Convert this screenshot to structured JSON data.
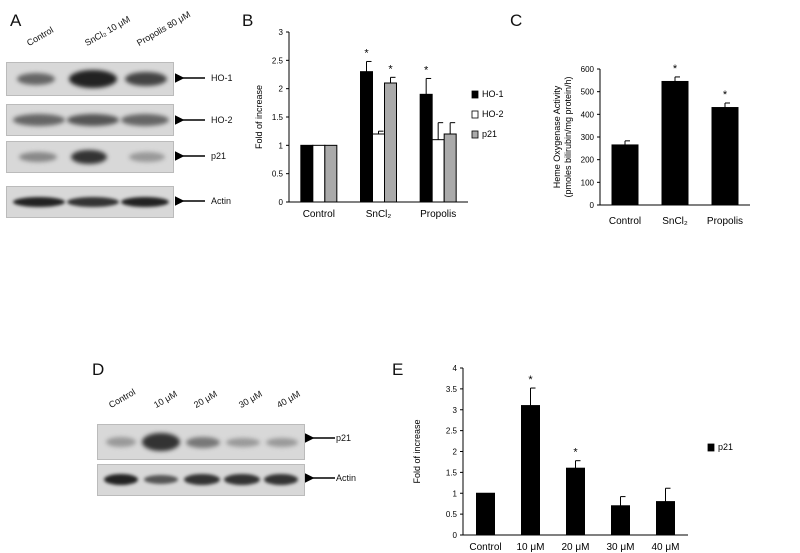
{
  "panels": {
    "a": "A",
    "b": "B",
    "c": "C",
    "d": "D",
    "e": "E"
  },
  "blotA": {
    "lanes": [
      "Control",
      "SnCl₂ 10 μM",
      "Propolis 80 μM"
    ],
    "rows": [
      "HO-1",
      "HO-2",
      "p21",
      "Actin"
    ]
  },
  "blotD": {
    "lanes": [
      "Control",
      "10 μM",
      "20 μM",
      "30 μM",
      "40 μM"
    ],
    "rows": [
      "p21",
      "Actin"
    ]
  },
  "chart_data": [
    {
      "id": "B",
      "type": "bar",
      "categories": [
        "Control",
        "SnCl₂",
        "Propolis"
      ],
      "series": [
        {
          "name": "HO-1",
          "values": [
            1.0,
            2.3,
            1.9
          ],
          "errors": [
            0,
            0.18,
            0.28
          ],
          "sig": [
            false,
            true,
            true
          ],
          "color": "#000000"
        },
        {
          "name": "HO-2",
          "values": [
            1.0,
            1.2,
            1.1
          ],
          "errors": [
            0,
            0.05,
            0.3
          ],
          "sig": [
            false,
            false,
            false
          ],
          "color": "#ffffff"
        },
        {
          "name": "p21",
          "values": [
            1.0,
            2.1,
            1.2
          ],
          "errors": [
            0,
            0.1,
            0.2
          ],
          "sig": [
            false,
            true,
            false
          ],
          "color": "#aaaaaa"
        }
      ],
      "ylabel": "Fold of increase",
      "ylim": [
        0,
        3
      ],
      "yticks": [
        "0",
        "0.5",
        "1",
        "1.5",
        "2",
        "2.5",
        "3"
      ],
      "sig_mark": "*",
      "legend_position": "right"
    },
    {
      "id": "C",
      "type": "bar",
      "categories": [
        "Control",
        "SnCl₂",
        "Propolis"
      ],
      "values": [
        265,
        545,
        430
      ],
      "errors": [
        18,
        20,
        20
      ],
      "sig": [
        false,
        true,
        true
      ],
      "ylabel": "Heme Oxygenase Activity",
      "ylabel2": "(pmoles bilirubin/mg protein/h)",
      "ylim": [
        0,
        600
      ],
      "yticks": [
        "0",
        "100",
        "200",
        "300",
        "400",
        "500",
        "600"
      ],
      "sig_mark": "*"
    },
    {
      "id": "E",
      "type": "bar",
      "categories": [
        "Control",
        "10 μM",
        "20 μM",
        "30 μM",
        "40 μM"
      ],
      "series": [
        {
          "name": "p21",
          "values": [
            1.0,
            3.1,
            1.6,
            0.7,
            0.8
          ],
          "errors": [
            0,
            0.42,
            0.18,
            0.22,
            0.32
          ],
          "sig": [
            false,
            true,
            true,
            false,
            false
          ],
          "color": "#000000"
        }
      ],
      "ylabel": "Fold of increase",
      "ylim": [
        0,
        4
      ],
      "yticks": [
        "0",
        "0.5",
        "1",
        "1.5",
        "2",
        "2.5",
        "3",
        "3.5",
        "4"
      ],
      "sig_mark": "*",
      "legend_position": "right"
    }
  ]
}
